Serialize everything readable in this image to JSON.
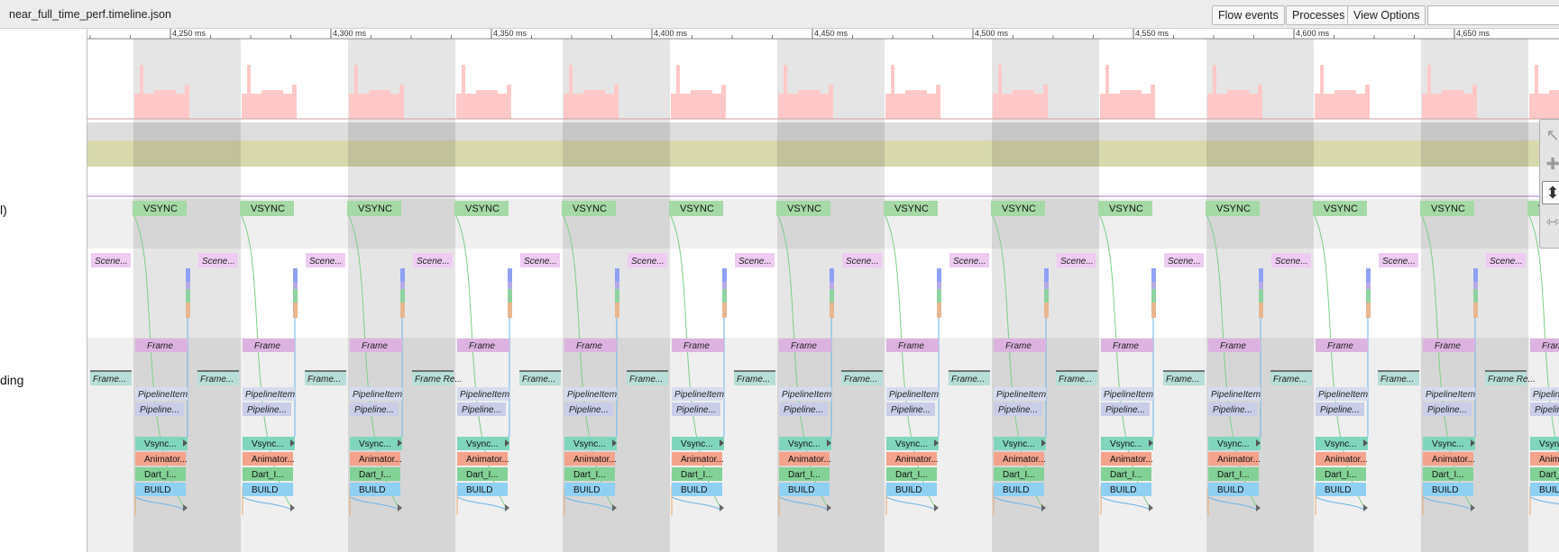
{
  "app": {
    "file_title": "near_full_time_perf.timeline.json"
  },
  "toolbar": {
    "flow_events_label": "Flow events",
    "processes_label": "Processes",
    "view_options_label": "View Options",
    "search_value": ""
  },
  "tracks": {
    "vsync_partial": "l)",
    "thread_partial": "ding"
  },
  "ruler": {
    "ticks": [
      "4,250 ms",
      "4,300 ms",
      "4,350 ms",
      "4,400 ms",
      "4,450 ms",
      "4,500 ms",
      "4,550 ms",
      "4,600 ms",
      "4,650 ms"
    ]
  },
  "slices": {
    "vsync": "VSYNC",
    "scene": "Scene...",
    "frame": "Frame",
    "frame_request": "Frame...",
    "frame_request_alt": "Frame Re...",
    "pipeline_item": "PipelineItem",
    "pipeline_short": "Pipeline...",
    "vsync_callback": "Vsync...",
    "animator": "Animator...",
    "dart": "Dart_I...",
    "build": "BUILD"
  },
  "colors": {
    "vsync": "#a5d9a5",
    "scene": "#eeccf2",
    "frame": "#dcb3e0",
    "frame_request": "#b8ded8",
    "pipeline_item": "#d6dcee",
    "pipeline": "#c9cde8",
    "vsync_callback": "#7fd6bd",
    "animator": "#f4a38c",
    "dart": "#82d195",
    "build": "#8fd0f2",
    "cpu_bars": "#ffc8c8",
    "olive_band": "#d7d9ad"
  },
  "tools": {
    "items": [
      "select-icon",
      "pan-icon",
      "zoom-icon",
      "timing-icon"
    ],
    "active": "zoom-icon"
  }
}
